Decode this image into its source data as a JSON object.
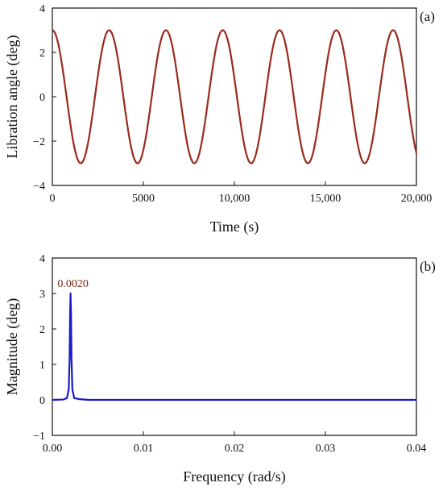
{
  "chart_data": [
    {
      "type": "line",
      "panel_label": "(a)",
      "xlabel": "Time (s)",
      "ylabel": "Libration angle (deg)",
      "xlim": [
        0,
        20000
      ],
      "ylim": [
        -4,
        4
      ],
      "x_ticks": [
        0,
        5000,
        10000,
        15000,
        20000
      ],
      "x_tick_labels": [
        "0",
        "5000",
        "10,000",
        "15,000",
        "20,000"
      ],
      "y_ticks": [
        -4,
        -2,
        0,
        2,
        4
      ],
      "y_tick_labels": [
        "−4",
        "−2",
        "0",
        "2",
        "4"
      ],
      "grid": false,
      "series": [
        {
          "color": "#9a2a1c",
          "form": "cosine",
          "amplitude": 3.0,
          "period": 3120,
          "phase": 0,
          "x_range": [
            0,
            20000
          ]
        }
      ]
    },
    {
      "type": "line",
      "panel_label": "(b)",
      "xlabel": "Frequency (rad/s)",
      "ylabel": "Magnitude (deg)",
      "xlim": [
        0,
        0.04
      ],
      "ylim": [
        -1,
        4
      ],
      "x_ticks": [
        0,
        0.01,
        0.02,
        0.03,
        0.04
      ],
      "x_tick_labels": [
        "0.00",
        "0.01",
        "0.02",
        "0.03",
        "0.04"
      ],
      "y_ticks": [
        -1,
        0,
        1,
        2,
        3,
        4
      ],
      "y_tick_labels": [
        "−1",
        "0",
        "1",
        "2",
        "3",
        "4"
      ],
      "grid": false,
      "annotation": {
        "text": "0.0020",
        "x": 0.002,
        "y": 3.0,
        "color": "#7a2a12"
      },
      "series": [
        {
          "color": "#1a1acc",
          "x": [
            0,
            0.0012,
            0.0016,
            0.0018,
            0.0019,
            0.00195,
            0.002,
            0.00205,
            0.0021,
            0.0022,
            0.0024,
            0.003,
            0.004,
            0.01,
            0.02,
            0.03,
            0.04
          ],
          "y": [
            0,
            0.01,
            0.05,
            0.3,
            1.2,
            2.4,
            3.0,
            2.4,
            1.2,
            0.3,
            0.05,
            0.02,
            0.0,
            0.0,
            0.0,
            0.0,
            0.0
          ]
        }
      ]
    }
  ]
}
